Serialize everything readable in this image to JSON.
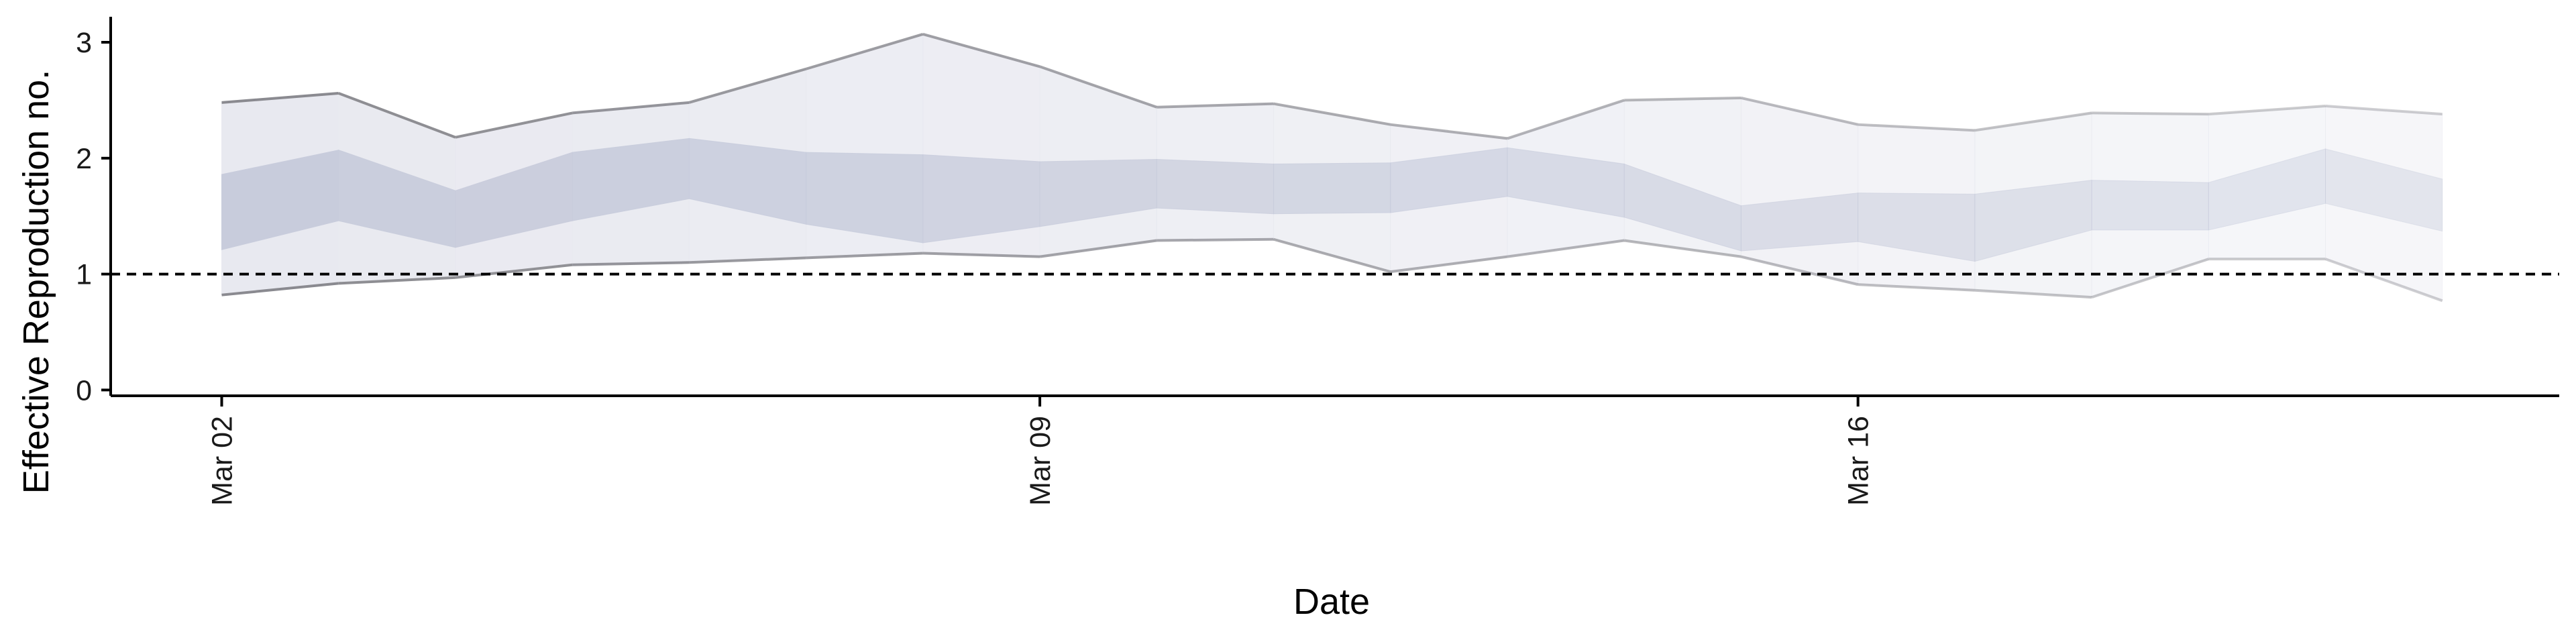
{
  "chart_data": {
    "type": "area",
    "title": "",
    "xlabel": "Date",
    "ylabel": "Effective Reproduction no.",
    "x_ticks": [
      "Mar 02",
      "Mar 09",
      "Mar 16"
    ],
    "x_tick_days": [
      2,
      9,
      16
    ],
    "y_ticks": [
      "0",
      "1",
      "2",
      "3"
    ],
    "ylim": [
      -0.05,
      3.22
    ],
    "xlim_days": [
      1.05,
      22.0
    ],
    "reference_line": {
      "y": 1,
      "style": "dashed"
    },
    "grid": false,
    "legend": "none",
    "x_days": [
      2,
      3,
      4,
      5,
      6,
      7,
      8,
      9,
      10,
      11,
      12,
      13,
      14,
      15,
      16,
      17,
      18,
      19,
      20,
      21
    ],
    "series": [
      {
        "band": "outer",
        "lower": [
          0.82,
          0.92,
          0.97,
          1.08,
          1.1,
          1.14,
          1.18,
          1.15,
          1.29,
          1.3,
          1.02,
          1.15,
          1.29,
          1.15,
          0.91,
          0.86,
          0.8,
          1.13,
          1.13,
          0.77
        ],
        "upper": [
          2.48,
          2.56,
          2.18,
          2.39,
          2.48,
          2.77,
          3.07,
          2.79,
          2.44,
          2.47,
          2.29,
          2.17,
          2.5,
          2.52,
          2.29,
          2.24,
          2.39,
          2.38,
          2.45,
          2.38
        ]
      },
      {
        "band": "inner",
        "lower": [
          1.21,
          1.46,
          1.23,
          1.46,
          1.65,
          1.43,
          1.27,
          1.41,
          1.57,
          1.52,
          1.53,
          1.67,
          1.49,
          1.2,
          1.28,
          1.11,
          1.38,
          1.38,
          1.61,
          1.37
        ],
        "upper": [
          1.86,
          2.07,
          1.72,
          2.05,
          2.17,
          2.05,
          2.03,
          1.97,
          1.99,
          1.95,
          1.96,
          2.09,
          1.95,
          1.59,
          1.7,
          1.69,
          1.81,
          1.79,
          2.08,
          1.82
        ]
      }
    ],
    "colors": {
      "outer_fill": "#e8e9f0",
      "inner_fill": "#c8ccdc",
      "bound_line": "#8a8a90",
      "ref_line": "#000000",
      "axis": "#000000"
    }
  }
}
